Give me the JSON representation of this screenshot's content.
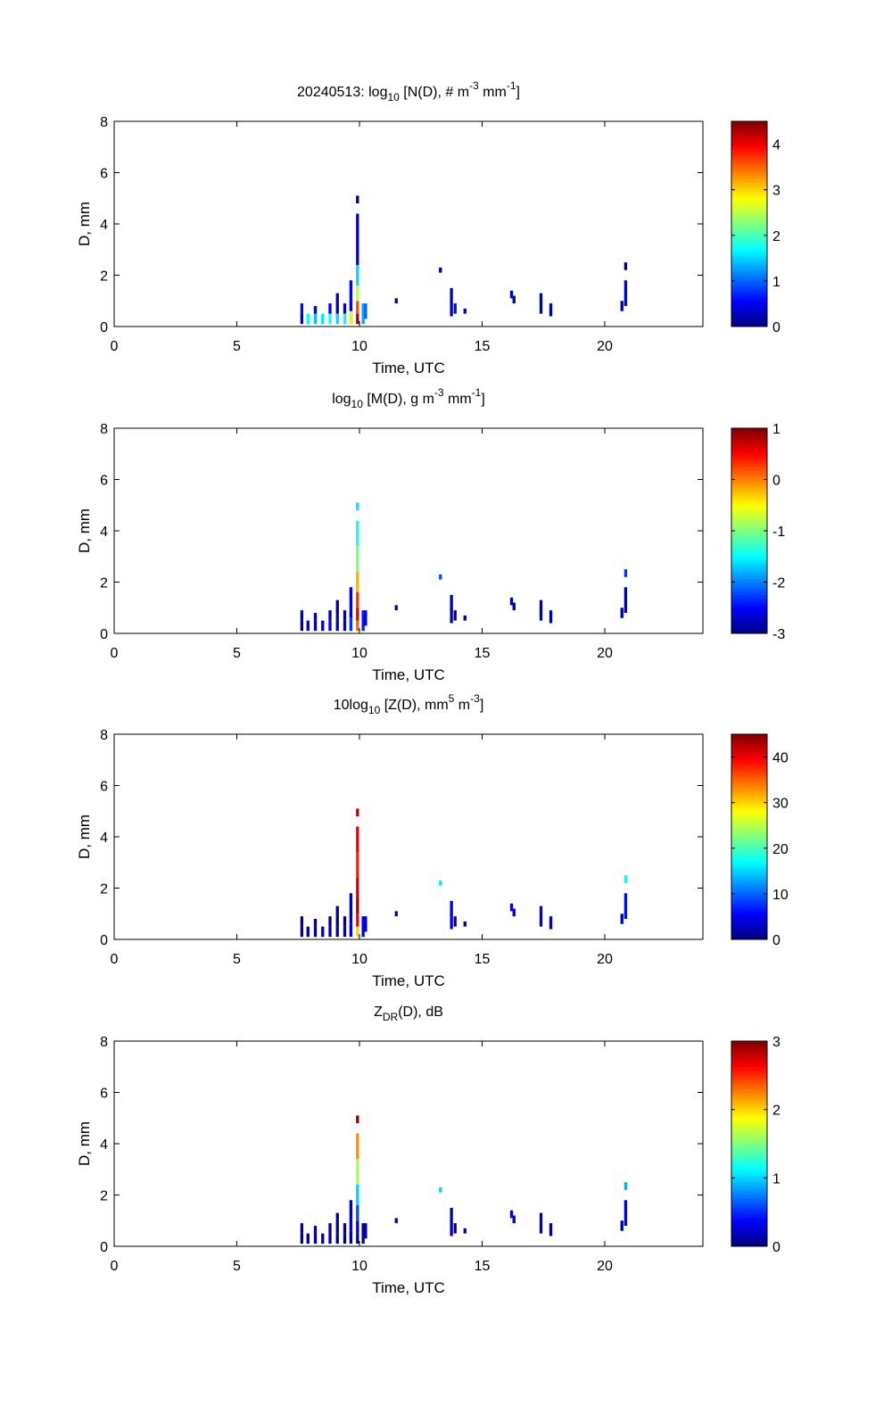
{
  "figure": {
    "date": "20240513"
  },
  "chart_data": [
    {
      "type": "heatmap",
      "title_parts": [
        "20240513: log",
        "10",
        " [N(D), # m",
        "-3",
        " mm",
        "-1",
        "]"
      ],
      "xlabel": "Time, UTC",
      "ylabel": "D, mm",
      "xlim": [
        0,
        24
      ],
      "ylim": [
        0,
        8
      ],
      "xticks": [
        "0",
        "5",
        "10",
        "15",
        "20"
      ],
      "yticks": [
        "0",
        "2",
        "4",
        "6",
        "8"
      ],
      "colorbar": {
        "min": 0,
        "max": 4.5,
        "ticks": [
          "0",
          "1",
          "2",
          "3",
          "4"
        ],
        "tick_values": [
          0,
          1,
          2,
          3,
          4
        ]
      },
      "cells": [
        {
          "t": 7.65,
          "d0": 0.1,
          "d1": 0.5,
          "v": 0.3
        },
        {
          "t": 7.65,
          "d0": 0.5,
          "d1": 0.9,
          "v": 0.6
        },
        {
          "t": 7.9,
          "d0": 0.1,
          "d1": 0.5,
          "v": 1.7
        },
        {
          "t": 8.2,
          "d0": 0.1,
          "d1": 0.5,
          "v": 1.4
        },
        {
          "t": 8.2,
          "d0": 0.5,
          "d1": 0.8,
          "v": 0.4
        },
        {
          "t": 8.5,
          "d0": 0.1,
          "d1": 0.5,
          "v": 1.6
        },
        {
          "t": 8.8,
          "d0": 0.1,
          "d1": 0.5,
          "v": 1.8
        },
        {
          "t": 8.8,
          "d0": 0.5,
          "d1": 0.9,
          "v": 0.5
        },
        {
          "t": 9.1,
          "d0": 0.1,
          "d1": 0.5,
          "v": 1.5
        },
        {
          "t": 9.1,
          "d0": 0.5,
          "d1": 1.3,
          "v": 0.3
        },
        {
          "t": 9.4,
          "d0": 0.1,
          "d1": 0.5,
          "v": 1.7
        },
        {
          "t": 9.4,
          "d0": 0.5,
          "d1": 0.9,
          "v": 0.4
        },
        {
          "t": 9.65,
          "d0": 0.1,
          "d1": 0.6,
          "v": 2.6
        },
        {
          "t": 9.65,
          "d0": 0.6,
          "d1": 1.8,
          "v": 0.5
        },
        {
          "t": 9.92,
          "d0": 0.1,
          "d1": 0.5,
          "v": 4.3
        },
        {
          "t": 9.92,
          "d0": 0.5,
          "d1": 1.0,
          "v": 3.6
        },
        {
          "t": 9.92,
          "d0": 1.0,
          "d1": 1.6,
          "v": 2.5
        },
        {
          "t": 9.92,
          "d0": 1.6,
          "d1": 2.4,
          "v": 1.5
        },
        {
          "t": 9.92,
          "d0": 2.4,
          "d1": 4.4,
          "v": 0.4
        },
        {
          "t": 9.92,
          "d0": 4.8,
          "d1": 5.1,
          "v": 0.1
        },
        {
          "t": 10.15,
          "d0": 0.1,
          "d1": 0.9,
          "v": 1.3
        },
        {
          "t": 10.25,
          "d0": 0.3,
          "d1": 0.9,
          "v": 1.0
        },
        {
          "t": 11.5,
          "d0": 0.9,
          "d1": 1.1,
          "v": 0.2
        },
        {
          "t": 13.3,
          "d0": 2.1,
          "d1": 2.3,
          "v": 0.1
        },
        {
          "t": 13.75,
          "d0": 0.4,
          "d1": 1.5,
          "v": 0.3
        },
        {
          "t": 13.9,
          "d0": 0.5,
          "d1": 0.9,
          "v": 0.6
        },
        {
          "t": 14.3,
          "d0": 0.5,
          "d1": 0.7,
          "v": 0.2
        },
        {
          "t": 16.2,
          "d0": 1.1,
          "d1": 1.4,
          "v": 0.3
        },
        {
          "t": 16.3,
          "d0": 0.9,
          "d1": 1.2,
          "v": 0.2
        },
        {
          "t": 17.4,
          "d0": 0.5,
          "d1": 1.3,
          "v": 0.3
        },
        {
          "t": 17.8,
          "d0": 0.4,
          "d1": 0.9,
          "v": 0.2
        },
        {
          "t": 20.7,
          "d0": 0.6,
          "d1": 1.0,
          "v": 0.2
        },
        {
          "t": 20.85,
          "d0": 0.8,
          "d1": 1.8,
          "v": 0.4
        },
        {
          "t": 20.85,
          "d0": 2.2,
          "d1": 2.5,
          "v": 0.1
        }
      ]
    },
    {
      "type": "heatmap",
      "title_parts": [
        "log",
        "10",
        " [M(D), g m",
        "-3",
        " mm",
        "-1",
        "]"
      ],
      "xlabel": "Time, UTC",
      "ylabel": "D, mm",
      "xlim": [
        0,
        24
      ],
      "ylim": [
        0,
        8
      ],
      "xticks": [
        "0",
        "5",
        "10",
        "15",
        "20"
      ],
      "yticks": [
        "0",
        "2",
        "4",
        "6",
        "8"
      ],
      "colorbar": {
        "min": -3,
        "max": 1,
        "ticks": [
          "-3",
          "-2",
          "-1",
          "0",
          "1"
        ],
        "tick_values": [
          -3,
          -2,
          -1,
          0,
          1
        ]
      },
      "cells": [
        {
          "t": 7.65,
          "d0": 0.1,
          "d1": 0.5,
          "v": -2.9
        },
        {
          "t": 7.65,
          "d0": 0.5,
          "d1": 0.9,
          "v": -2.8
        },
        {
          "t": 7.9,
          "d0": 0.1,
          "d1": 0.5,
          "v": -2.7
        },
        {
          "t": 8.2,
          "d0": 0.1,
          "d1": 0.5,
          "v": -2.8
        },
        {
          "t": 8.2,
          "d0": 0.5,
          "d1": 0.8,
          "v": -2.8
        },
        {
          "t": 8.5,
          "d0": 0.1,
          "d1": 0.5,
          "v": -2.7
        },
        {
          "t": 8.8,
          "d0": 0.1,
          "d1": 0.5,
          "v": -2.6
        },
        {
          "t": 8.8,
          "d0": 0.5,
          "d1": 0.9,
          "v": -2.8
        },
        {
          "t": 9.1,
          "d0": 0.1,
          "d1": 0.5,
          "v": -2.7
        },
        {
          "t": 9.1,
          "d0": 0.5,
          "d1": 1.3,
          "v": -2.8
        },
        {
          "t": 9.4,
          "d0": 0.1,
          "d1": 0.5,
          "v": -2.7
        },
        {
          "t": 9.4,
          "d0": 0.5,
          "d1": 0.9,
          "v": -2.8
        },
        {
          "t": 9.65,
          "d0": 0.1,
          "d1": 0.6,
          "v": -2.3
        },
        {
          "t": 9.65,
          "d0": 0.6,
          "d1": 1.8,
          "v": -2.6
        },
        {
          "t": 9.92,
          "d0": 0.1,
          "d1": 0.5,
          "v": 0.1
        },
        {
          "t": 9.92,
          "d0": 0.5,
          "d1": 1.0,
          "v": 0.6
        },
        {
          "t": 9.92,
          "d0": 1.0,
          "d1": 1.6,
          "v": 0.3
        },
        {
          "t": 9.92,
          "d0": 1.6,
          "d1": 2.4,
          "v": -0.2
        },
        {
          "t": 9.92,
          "d0": 2.4,
          "d1": 3.4,
          "v": -1.0
        },
        {
          "t": 9.92,
          "d0": 3.4,
          "d1": 4.4,
          "v": -1.4
        },
        {
          "t": 9.92,
          "d0": 4.8,
          "d1": 5.1,
          "v": -1.6
        },
        {
          "t": 10.15,
          "d0": 0.1,
          "d1": 0.9,
          "v": -2.4
        },
        {
          "t": 10.25,
          "d0": 0.3,
          "d1": 0.9,
          "v": -2.6
        },
        {
          "t": 11.5,
          "d0": 0.9,
          "d1": 1.1,
          "v": -2.9
        },
        {
          "t": 13.3,
          "d0": 2.1,
          "d1": 2.3,
          "v": -2.2
        },
        {
          "t": 13.75,
          "d0": 0.4,
          "d1": 1.5,
          "v": -2.8
        },
        {
          "t": 13.9,
          "d0": 0.5,
          "d1": 0.9,
          "v": -2.8
        },
        {
          "t": 14.3,
          "d0": 0.5,
          "d1": 0.7,
          "v": -2.9
        },
        {
          "t": 16.2,
          "d0": 1.1,
          "d1": 1.4,
          "v": -2.8
        },
        {
          "t": 16.3,
          "d0": 0.9,
          "d1": 1.2,
          "v": -2.8
        },
        {
          "t": 17.4,
          "d0": 0.5,
          "d1": 1.3,
          "v": -2.8
        },
        {
          "t": 17.8,
          "d0": 0.4,
          "d1": 0.9,
          "v": -2.8
        },
        {
          "t": 20.7,
          "d0": 0.6,
          "d1": 1.0,
          "v": -2.8
        },
        {
          "t": 20.85,
          "d0": 0.8,
          "d1": 1.8,
          "v": -2.8
        },
        {
          "t": 20.85,
          "d0": 2.2,
          "d1": 2.5,
          "v": -2.3
        }
      ]
    },
    {
      "type": "heatmap",
      "title_parts": [
        "10log",
        "10",
        " [Z(D),  mm",
        "5",
        " m",
        "-3",
        "]"
      ],
      "xlabel": "Time, UTC",
      "ylabel": "D, mm",
      "xlim": [
        0,
        24
      ],
      "ylim": [
        0,
        8
      ],
      "xticks": [
        "0",
        "5",
        "10",
        "15",
        "20"
      ],
      "yticks": [
        "0",
        "2",
        "4",
        "6",
        "8"
      ],
      "colorbar": {
        "min": 0,
        "max": 45,
        "ticks": [
          "0",
          "10",
          "20",
          "30",
          "40"
        ],
        "tick_values": [
          0,
          10,
          20,
          30,
          40
        ]
      },
      "cells": [
        {
          "t": 7.65,
          "d0": 0.1,
          "d1": 0.5,
          "v": 1
        },
        {
          "t": 7.65,
          "d0": 0.5,
          "d1": 0.9,
          "v": 1
        },
        {
          "t": 7.9,
          "d0": 0.1,
          "d1": 0.5,
          "v": 2
        },
        {
          "t": 8.2,
          "d0": 0.1,
          "d1": 0.5,
          "v": 1
        },
        {
          "t": 8.2,
          "d0": 0.5,
          "d1": 0.8,
          "v": 1
        },
        {
          "t": 8.5,
          "d0": 0.1,
          "d1": 0.5,
          "v": 2
        },
        {
          "t": 8.8,
          "d0": 0.1,
          "d1": 0.5,
          "v": 2
        },
        {
          "t": 8.8,
          "d0": 0.5,
          "d1": 0.9,
          "v": 1
        },
        {
          "t": 9.1,
          "d0": 0.1,
          "d1": 0.5,
          "v": 2
        },
        {
          "t": 9.1,
          "d0": 0.5,
          "d1": 1.3,
          "v": 1
        },
        {
          "t": 9.4,
          "d0": 0.1,
          "d1": 0.5,
          "v": 2
        },
        {
          "t": 9.4,
          "d0": 0.5,
          "d1": 0.9,
          "v": 1
        },
        {
          "t": 9.65,
          "d0": 0.1,
          "d1": 0.6,
          "v": 4
        },
        {
          "t": 9.65,
          "d0": 0.6,
          "d1": 1.8,
          "v": 3
        },
        {
          "t": 9.92,
          "d0": 0.1,
          "d1": 0.5,
          "v": 30
        },
        {
          "t": 9.92,
          "d0": 0.5,
          "d1": 1.0,
          "v": 40
        },
        {
          "t": 9.92,
          "d0": 1.0,
          "d1": 1.6,
          "v": 43
        },
        {
          "t": 9.92,
          "d0": 1.6,
          "d1": 2.4,
          "v": 41
        },
        {
          "t": 9.92,
          "d0": 2.4,
          "d1": 3.4,
          "v": 38
        },
        {
          "t": 9.92,
          "d0": 3.4,
          "d1": 4.4,
          "v": 40
        },
        {
          "t": 9.92,
          "d0": 4.8,
          "d1": 5.1,
          "v": 42
        },
        {
          "t": 10.15,
          "d0": 0.1,
          "d1": 0.9,
          "v": 5
        },
        {
          "t": 10.25,
          "d0": 0.3,
          "d1": 0.9,
          "v": 4
        },
        {
          "t": 11.5,
          "d0": 0.9,
          "d1": 1.1,
          "v": 2
        },
        {
          "t": 13.3,
          "d0": 2.1,
          "d1": 2.3,
          "v": 16
        },
        {
          "t": 13.75,
          "d0": 0.4,
          "d1": 1.5,
          "v": 4
        },
        {
          "t": 13.9,
          "d0": 0.5,
          "d1": 0.9,
          "v": 3
        },
        {
          "t": 14.3,
          "d0": 0.5,
          "d1": 0.7,
          "v": 2
        },
        {
          "t": 16.2,
          "d0": 1.1,
          "d1": 1.4,
          "v": 5
        },
        {
          "t": 16.3,
          "d0": 0.9,
          "d1": 1.2,
          "v": 4
        },
        {
          "t": 17.4,
          "d0": 0.5,
          "d1": 1.3,
          "v": 4
        },
        {
          "t": 17.8,
          "d0": 0.4,
          "d1": 0.9,
          "v": 3
        },
        {
          "t": 20.7,
          "d0": 0.6,
          "d1": 1.0,
          "v": 3
        },
        {
          "t": 20.85,
          "d0": 0.8,
          "d1": 1.8,
          "v": 6
        },
        {
          "t": 20.85,
          "d0": 2.2,
          "d1": 2.5,
          "v": 17
        }
      ]
    },
    {
      "type": "heatmap",
      "title_parts": [
        "Z",
        "DR",
        "(D), dB"
      ],
      "xlabel": "Time, UTC",
      "ylabel": "D, mm",
      "xlim": [
        0,
        24
      ],
      "ylim": [
        0,
        8
      ],
      "xticks": [
        "0",
        "5",
        "10",
        "15",
        "20"
      ],
      "yticks": [
        "0",
        "2",
        "4",
        "6",
        "8"
      ],
      "colorbar": {
        "min": 0,
        "max": 3,
        "ticks": [
          "0",
          "1",
          "2",
          "3"
        ],
        "tick_values": [
          0,
          1,
          2,
          3
        ]
      },
      "cells": [
        {
          "t": 7.65,
          "d0": 0.1,
          "d1": 0.5,
          "v": 0.1
        },
        {
          "t": 7.65,
          "d0": 0.5,
          "d1": 0.9,
          "v": 0.1
        },
        {
          "t": 7.9,
          "d0": 0.1,
          "d1": 0.5,
          "v": 0.1
        },
        {
          "t": 8.2,
          "d0": 0.1,
          "d1": 0.5,
          "v": 0.1
        },
        {
          "t": 8.2,
          "d0": 0.5,
          "d1": 0.8,
          "v": 0.1
        },
        {
          "t": 8.5,
          "d0": 0.1,
          "d1": 0.5,
          "v": 0.1
        },
        {
          "t": 8.8,
          "d0": 0.1,
          "d1": 0.5,
          "v": 0.1
        },
        {
          "t": 8.8,
          "d0": 0.5,
          "d1": 0.9,
          "v": 0.1
        },
        {
          "t": 9.1,
          "d0": 0.1,
          "d1": 0.5,
          "v": 0.1
        },
        {
          "t": 9.1,
          "d0": 0.5,
          "d1": 1.3,
          "v": 0.1
        },
        {
          "t": 9.4,
          "d0": 0.1,
          "d1": 0.5,
          "v": 0.1
        },
        {
          "t": 9.4,
          "d0": 0.5,
          "d1": 0.9,
          "v": 0.1
        },
        {
          "t": 9.65,
          "d0": 0.1,
          "d1": 0.6,
          "v": 0.1
        },
        {
          "t": 9.65,
          "d0": 0.6,
          "d1": 1.8,
          "v": 0.2
        },
        {
          "t": 9.92,
          "d0": 0.1,
          "d1": 0.5,
          "v": 0.1
        },
        {
          "t": 9.92,
          "d0": 0.5,
          "d1": 1.0,
          "v": 0.3
        },
        {
          "t": 9.92,
          "d0": 1.0,
          "d1": 1.6,
          "v": 0.6
        },
        {
          "t": 9.92,
          "d0": 1.6,
          "d1": 2.4,
          "v": 1.0
        },
        {
          "t": 9.92,
          "d0": 2.4,
          "d1": 3.4,
          "v": 1.6
        },
        {
          "t": 9.92,
          "d0": 3.4,
          "d1": 4.4,
          "v": 2.2
        },
        {
          "t": 9.92,
          "d0": 4.8,
          "d1": 5.1,
          "v": 2.9
        },
        {
          "t": 10.15,
          "d0": 0.1,
          "d1": 0.9,
          "v": 0.1
        },
        {
          "t": 10.25,
          "d0": 0.3,
          "d1": 0.9,
          "v": 0.1
        },
        {
          "t": 11.5,
          "d0": 0.9,
          "d1": 1.1,
          "v": 0.2
        },
        {
          "t": 13.3,
          "d0": 2.1,
          "d1": 2.3,
          "v": 1.0
        },
        {
          "t": 13.75,
          "d0": 0.4,
          "d1": 1.5,
          "v": 0.2
        },
        {
          "t": 13.9,
          "d0": 0.5,
          "d1": 0.9,
          "v": 0.1
        },
        {
          "t": 14.3,
          "d0": 0.5,
          "d1": 0.7,
          "v": 0.1
        },
        {
          "t": 16.2,
          "d0": 1.1,
          "d1": 1.4,
          "v": 0.3
        },
        {
          "t": 16.3,
          "d0": 0.9,
          "d1": 1.2,
          "v": 0.2
        },
        {
          "t": 17.4,
          "d0": 0.5,
          "d1": 1.3,
          "v": 0.2
        },
        {
          "t": 17.8,
          "d0": 0.4,
          "d1": 0.9,
          "v": 0.1
        },
        {
          "t": 20.7,
          "d0": 0.6,
          "d1": 1.0,
          "v": 0.1
        },
        {
          "t": 20.85,
          "d0": 0.8,
          "d1": 1.8,
          "v": 0.3
        },
        {
          "t": 20.85,
          "d0": 2.2,
          "d1": 2.5,
          "v": 0.9
        }
      ]
    }
  ]
}
